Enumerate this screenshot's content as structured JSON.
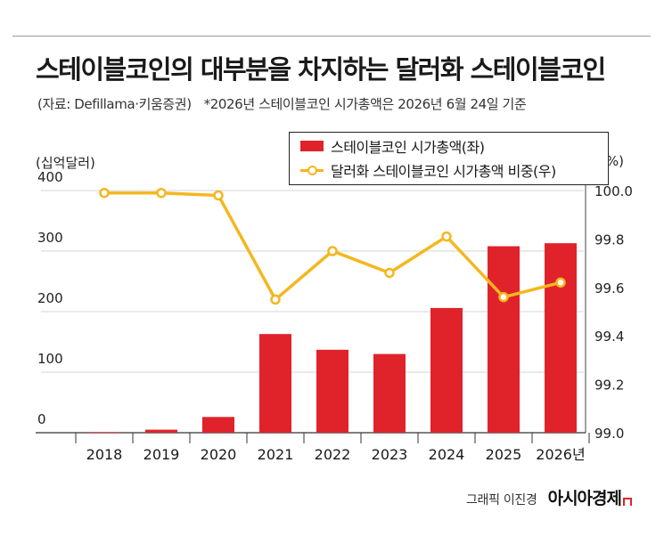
{
  "header": {
    "title": "스테이블코인의 대부분을 차지하는 달러화 스테이블코인",
    "source": "(자료: Defillama·키움증권)",
    "note": "*2026년 스테이블코인 시가총액은 2026년 6월 24일 기준"
  },
  "footer": {
    "credit": "그래픽 이진경",
    "logo": "아시아경제"
  },
  "chart_data": {
    "type": "bar+line",
    "categories": [
      "2018",
      "2019",
      "2020",
      "2021",
      "2022",
      "2023",
      "2024",
      "2025",
      "2026년"
    ],
    "left_axis": {
      "unit_label": "(십억달러)",
      "range": [
        0,
        400
      ],
      "ticks": [
        "0",
        "100",
        "200",
        "300",
        "400"
      ],
      "tick_values": [
        0,
        100,
        200,
        300,
        400
      ]
    },
    "right_axis": {
      "unit_label": "(%)",
      "range": [
        99.0,
        100.0
      ],
      "ticks": [
        "99.0",
        "99.2",
        "99.4",
        "99.6",
        "99.8",
        "100.0"
      ],
      "tick_values": [
        99.0,
        99.2,
        99.4,
        99.6,
        99.8,
        100.0
      ]
    },
    "series": [
      {
        "name": "스테이블코인 시가총액(좌)",
        "kind": "bar",
        "axis": "left",
        "color": "#e0232a",
        "values": [
          1,
          5,
          26,
          163,
          137,
          130,
          206,
          308,
          313
        ]
      },
      {
        "name": "달러화 스테이블코인 시가총액 비중(우)",
        "kind": "line",
        "axis": "right",
        "color": "#f4b71e",
        "values": [
          99.99,
          99.99,
          99.98,
          99.55,
          99.75,
          99.66,
          99.81,
          99.56,
          99.62
        ]
      }
    ],
    "legend_position": "top-right",
    "grid": "horizontal"
  }
}
